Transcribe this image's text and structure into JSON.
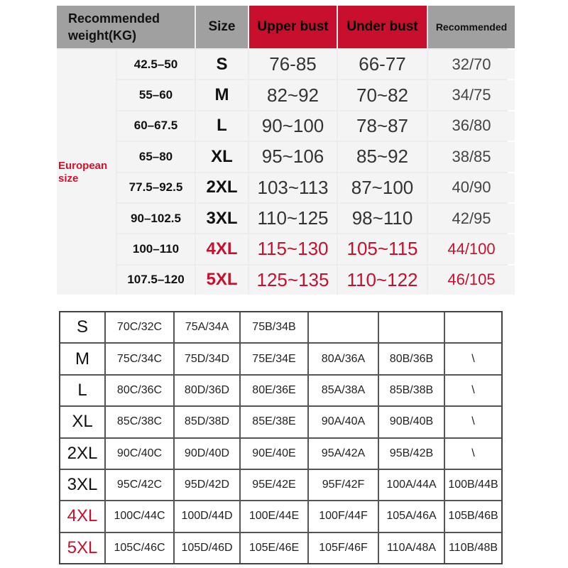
{
  "top_table": {
    "headers": {
      "weight": "Recommended weight(KG)",
      "size": "Size",
      "upper": "Upper bust",
      "under": "Under bust",
      "recommended": "Recommended"
    },
    "group_label": "European size",
    "rows": [
      {
        "weight": "42.5–50",
        "size": "S",
        "upper": "76-85",
        "under": "66-77",
        "rec": "32/70",
        "highlight": false
      },
      {
        "weight": "55–60",
        "size": "M",
        "upper": "82~92",
        "under": "70~82",
        "rec": "34/75",
        "highlight": false
      },
      {
        "weight": "60–67.5",
        "size": "L",
        "upper": "90~100",
        "under": "78~87",
        "rec": "36/80",
        "highlight": false
      },
      {
        "weight": "65–80",
        "size": "XL",
        "upper": "95~106",
        "under": "85~92",
        "rec": "38/85",
        "highlight": false
      },
      {
        "weight": "77.5–92.5",
        "size": "2XL",
        "upper": "103~113",
        "under": "87~100",
        "rec": "40/90",
        "highlight": false
      },
      {
        "weight": "90–102.5",
        "size": "3XL",
        "upper": "110~125",
        "under": "98~110",
        "rec": "42/95",
        "highlight": false
      },
      {
        "weight": "100–110",
        "size": "4XL",
        "upper": "115~130",
        "under": "105~115",
        "rec": "44/100",
        "highlight": true
      },
      {
        "weight": "107.5–120",
        "size": "5XL",
        "upper": "125~135",
        "under": "110~122",
        "rec": "46/105",
        "highlight": true
      }
    ],
    "colors": {
      "header_gray": "#a0a0a0",
      "header_red": "#c8102e",
      "highlight": "#c8102e"
    }
  },
  "bottom_table": {
    "rows": [
      {
        "size": "S",
        "cells": [
          "70C/32C",
          "75A/34A",
          "75B/34B",
          "",
          "",
          ""
        ],
        "highlight": false
      },
      {
        "size": "M",
        "cells": [
          "75C/34C",
          "75D/34D",
          "75E/34E",
          "80A/36A",
          "80B/36B",
          "\\"
        ],
        "highlight": false
      },
      {
        "size": "L",
        "cells": [
          "80C/36C",
          "80D/36D",
          "80E/36E",
          "85A/38A",
          "85B/38B",
          "\\"
        ],
        "highlight": false
      },
      {
        "size": "XL",
        "cells": [
          "85C/38C",
          "85D/38D",
          "85E/38E",
          "90A/40A",
          "90B/40B",
          "\\"
        ],
        "highlight": false
      },
      {
        "size": "2XL",
        "cells": [
          "90C/40C",
          "90D/40D",
          "90E/40E",
          "95A/42A",
          "95B/42B",
          "\\"
        ],
        "highlight": false
      },
      {
        "size": "3XL",
        "cells": [
          "95C/42C",
          "95D/42D",
          "95E/42E",
          "95F/42F",
          "100A/44A",
          "100B/44B"
        ],
        "highlight": false
      },
      {
        "size": "4XL",
        "cells": [
          "100C/44C",
          "100D/44D",
          "100E/44E",
          "100F/44F",
          "105A/46A",
          "105B/46B"
        ],
        "highlight": true
      },
      {
        "size": "5XL",
        "cells": [
          "105C/46C",
          "105D/46D",
          "105E/46E",
          "105F/46F",
          "110A/48A",
          "110B/48B"
        ],
        "highlight": true
      }
    ]
  }
}
